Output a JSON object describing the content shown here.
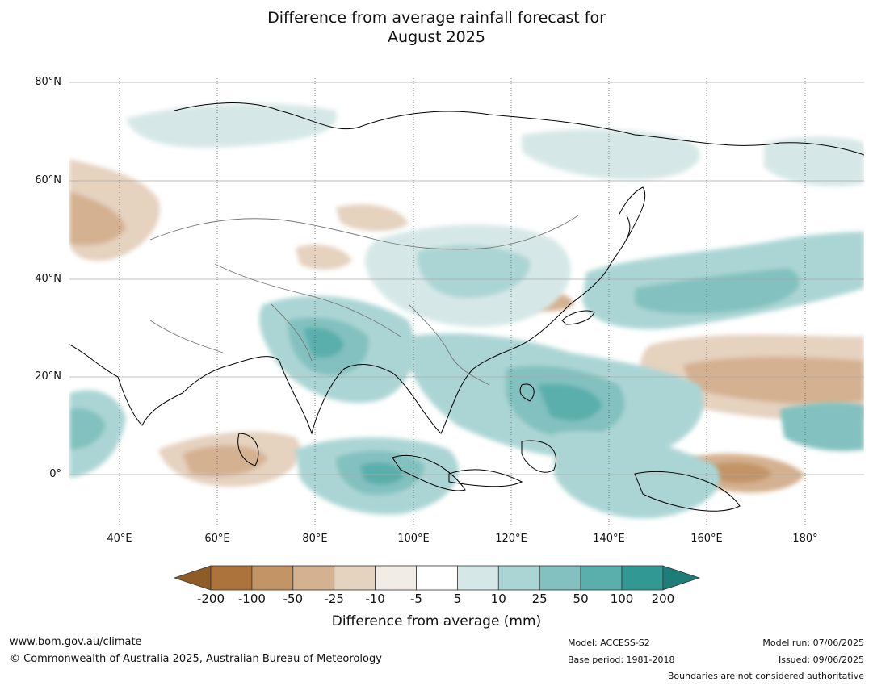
{
  "title_line1": "Difference from average rainfall forecast for",
  "title_line2": "August 2025",
  "lat_labels": [
    "80°N",
    "60°N",
    "40°N",
    "20°N",
    "0°"
  ],
  "lon_labels": [
    "40°E",
    "60°E",
    "80°E",
    "100°E",
    "120°E",
    "140°E",
    "160°E",
    "180°"
  ],
  "colorbar": {
    "ticks": [
      "-200",
      "-100",
      "-50",
      "-25",
      "-10",
      "-5",
      "5",
      "10",
      "25",
      "50",
      "100",
      "200"
    ],
    "colors": [
      "#8f5b27",
      "#ac733d",
      "#c39465",
      "#d4b190",
      "#e5d2bf",
      "#f1ece6",
      "#ffffff",
      "#d5e8e7",
      "#abd5d4",
      "#82c1bf",
      "#5aaeac",
      "#329894",
      "#1f7d79"
    ],
    "label": "Difference from average (mm)"
  },
  "footer": {
    "website": "www.bom.gov.au/climate",
    "copyright": "© Commonwealth of Australia 2025, Australian Bureau of Meteorology",
    "model": "Model: ACCESS-S2",
    "base_period": "Base period: 1981-2018",
    "model_run": "Model run: 07/06/2025",
    "issued": "Issued: 09/06/2025",
    "boundaries_note": "Boundaries are not considered authoritative"
  }
}
